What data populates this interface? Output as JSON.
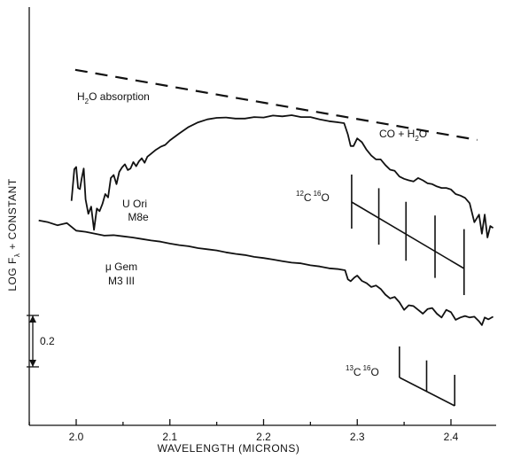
{
  "chart_data": {
    "type": "line",
    "title": "",
    "xlabel": "WAVELENGTH  (MICRONS)",
    "ylabel": "LOG F",
    "ylabel_subscript": "λ",
    "ylabel_suffix": " + CONSTANT",
    "xlim": [
      1.96,
      2.445
    ],
    "x_ticks": [
      2.0,
      2.1,
      2.2,
      2.3,
      2.4
    ],
    "x_tick_labels": [
      "2.0",
      "2.1",
      "2.2",
      "2.3",
      "2.4"
    ],
    "scale_bar_value": 0.2,
    "scale_bar_label": "0.2",
    "grid": false,
    "series": [
      {
        "name": "U Ori M8e",
        "label_line1": "U  Ori",
        "label_line2": "M8e",
        "x": [
          1.995,
          1.998,
          2.0,
          2.002,
          2.004,
          2.006,
          2.008,
          2.01,
          2.013,
          2.016,
          2.019,
          2.022,
          2.025,
          2.028,
          2.031,
          2.034,
          2.037,
          2.04,
          2.043,
          2.046,
          2.049,
          2.052,
          2.055,
          2.058,
          2.061,
          2.064,
          2.067,
          2.07,
          2.073,
          2.076,
          2.08,
          2.085,
          2.09,
          2.095,
          2.1,
          2.11,
          2.12,
          2.13,
          2.14,
          2.15,
          2.16,
          2.17,
          2.18,
          2.19,
          2.2,
          2.21,
          2.22,
          2.23,
          2.24,
          2.25,
          2.26,
          2.27,
          2.28,
          2.286,
          2.29,
          2.293,
          2.296,
          2.3,
          2.305,
          2.31,
          2.315,
          2.32,
          2.325,
          2.33,
          2.335,
          2.34,
          2.345,
          2.35,
          2.355,
          2.36,
          2.365,
          2.37,
          2.375,
          2.38,
          2.385,
          2.39,
          2.395,
          2.4,
          2.405,
          2.41,
          2.415,
          2.42,
          2.425,
          2.43,
          2.433,
          2.436,
          2.439,
          2.442,
          2.445
        ],
        "y": [
          9.6,
          17.9,
          18.5,
          13.0,
          12.7,
          15.6,
          18.1,
          10.0,
          6.2,
          8.1,
          2.0,
          7.6,
          6.9,
          8.8,
          11.4,
          10.5,
          15.6,
          16.4,
          14.0,
          17.2,
          18.4,
          19.2,
          17.7,
          18.1,
          19.8,
          18.7,
          20.0,
          20.8,
          19.6,
          21.2,
          22.0,
          23.0,
          23.8,
          24.3,
          25.5,
          27.3,
          29.0,
          30.2,
          31.0,
          31.4,
          31.5,
          31.2,
          31.2,
          31.6,
          31.5,
          32.0,
          31.8,
          32.1,
          31.6,
          31.6,
          31.0,
          30.5,
          30.2,
          30.0,
          27.0,
          24.0,
          24.0,
          26.0,
          25.0,
          23.0,
          21.5,
          20.5,
          20.5,
          19.0,
          17.8,
          17.5,
          16.0,
          15.4,
          15.0,
          14.7,
          15.6,
          15.0,
          14.2,
          14.0,
          13.4,
          13.0,
          13.0,
          12.6,
          11.4,
          11.0,
          10.4,
          9.0,
          4.0,
          6.0,
          1.0,
          6.0,
          0.0,
          3.0,
          2.5
        ]
      },
      {
        "name": "μ Gem M3 III",
        "label_line1": "μ Gem",
        "label_line2": "M3 III",
        "x": [
          1.96,
          1.97,
          1.98,
          1.99,
          2.0,
          2.01,
          2.02,
          2.03,
          2.04,
          2.05,
          2.06,
          2.07,
          2.08,
          2.09,
          2.1,
          2.11,
          2.12,
          2.13,
          2.14,
          2.15,
          2.16,
          2.17,
          2.18,
          2.19,
          2.2,
          2.21,
          2.22,
          2.23,
          2.24,
          2.25,
          2.26,
          2.27,
          2.28,
          2.287,
          2.29,
          2.293,
          2.297,
          2.3,
          2.305,
          2.31,
          2.315,
          2.32,
          2.325,
          2.33,
          2.335,
          2.34,
          2.345,
          2.35,
          2.355,
          2.36,
          2.365,
          2.37,
          2.375,
          2.38,
          2.385,
          2.39,
          2.395,
          2.4,
          2.405,
          2.41,
          2.415,
          2.42,
          2.425,
          2.43,
          2.433,
          2.436,
          2.44,
          2.445
        ],
        "y": [
          4.5,
          4.0,
          3.2,
          3.8,
          1.8,
          1.5,
          1.0,
          0.5,
          0.6,
          0.3,
          0.0,
          -0.4,
          -0.8,
          -1.1,
          -1.6,
          -2.0,
          -2.3,
          -2.8,
          -3.1,
          -3.4,
          -3.9,
          -4.3,
          -4.6,
          -5.1,
          -5.4,
          -5.8,
          -6.2,
          -6.6,
          -6.8,
          -7.3,
          -7.6,
          -8.1,
          -8.3,
          -8.6,
          -11.0,
          -11.5,
          -10.5,
          -10.0,
          -11.4,
          -12.0,
          -13.0,
          -12.6,
          -13.5,
          -15.0,
          -16.0,
          -15.6,
          -17.0,
          -19.0,
          -17.8,
          -18.0,
          -19.0,
          -20.0,
          -18.8,
          -18.5,
          -20.0,
          -21.0,
          -19.0,
          -19.6,
          -21.6,
          -21.0,
          -20.6,
          -21.0,
          -20.8,
          -22.0,
          -23.0,
          -21.0,
          -21.5,
          -20.8
        ]
      },
      {
        "name": "continuum",
        "style": "dashed",
        "x": [
          1.999,
          2.428
        ],
        "y": [
          44.0,
          25.6
        ]
      }
    ],
    "annotations": [
      {
        "text": "H2O absorption",
        "main": "H",
        "subscript": "2",
        "rest": "O absorption"
      },
      {
        "text": "CO + H2O",
        "main": "CO + H",
        "subscript": "2",
        "rest": "O"
      },
      {
        "text": "12C 16O",
        "sup1": "12",
        "base1": "C",
        "sup2": "16",
        "base2": "O"
      },
      {
        "text": "13C 16O",
        "sup1": "13",
        "base1": "C",
        "sup2": "16",
        "base2": "O"
      }
    ],
    "band_heads_12C16O": [
      2.294,
      2.323,
      2.352,
      2.383,
      2.414
    ],
    "band_heads_13C16O": [
      2.345,
      2.374,
      2.404
    ]
  }
}
